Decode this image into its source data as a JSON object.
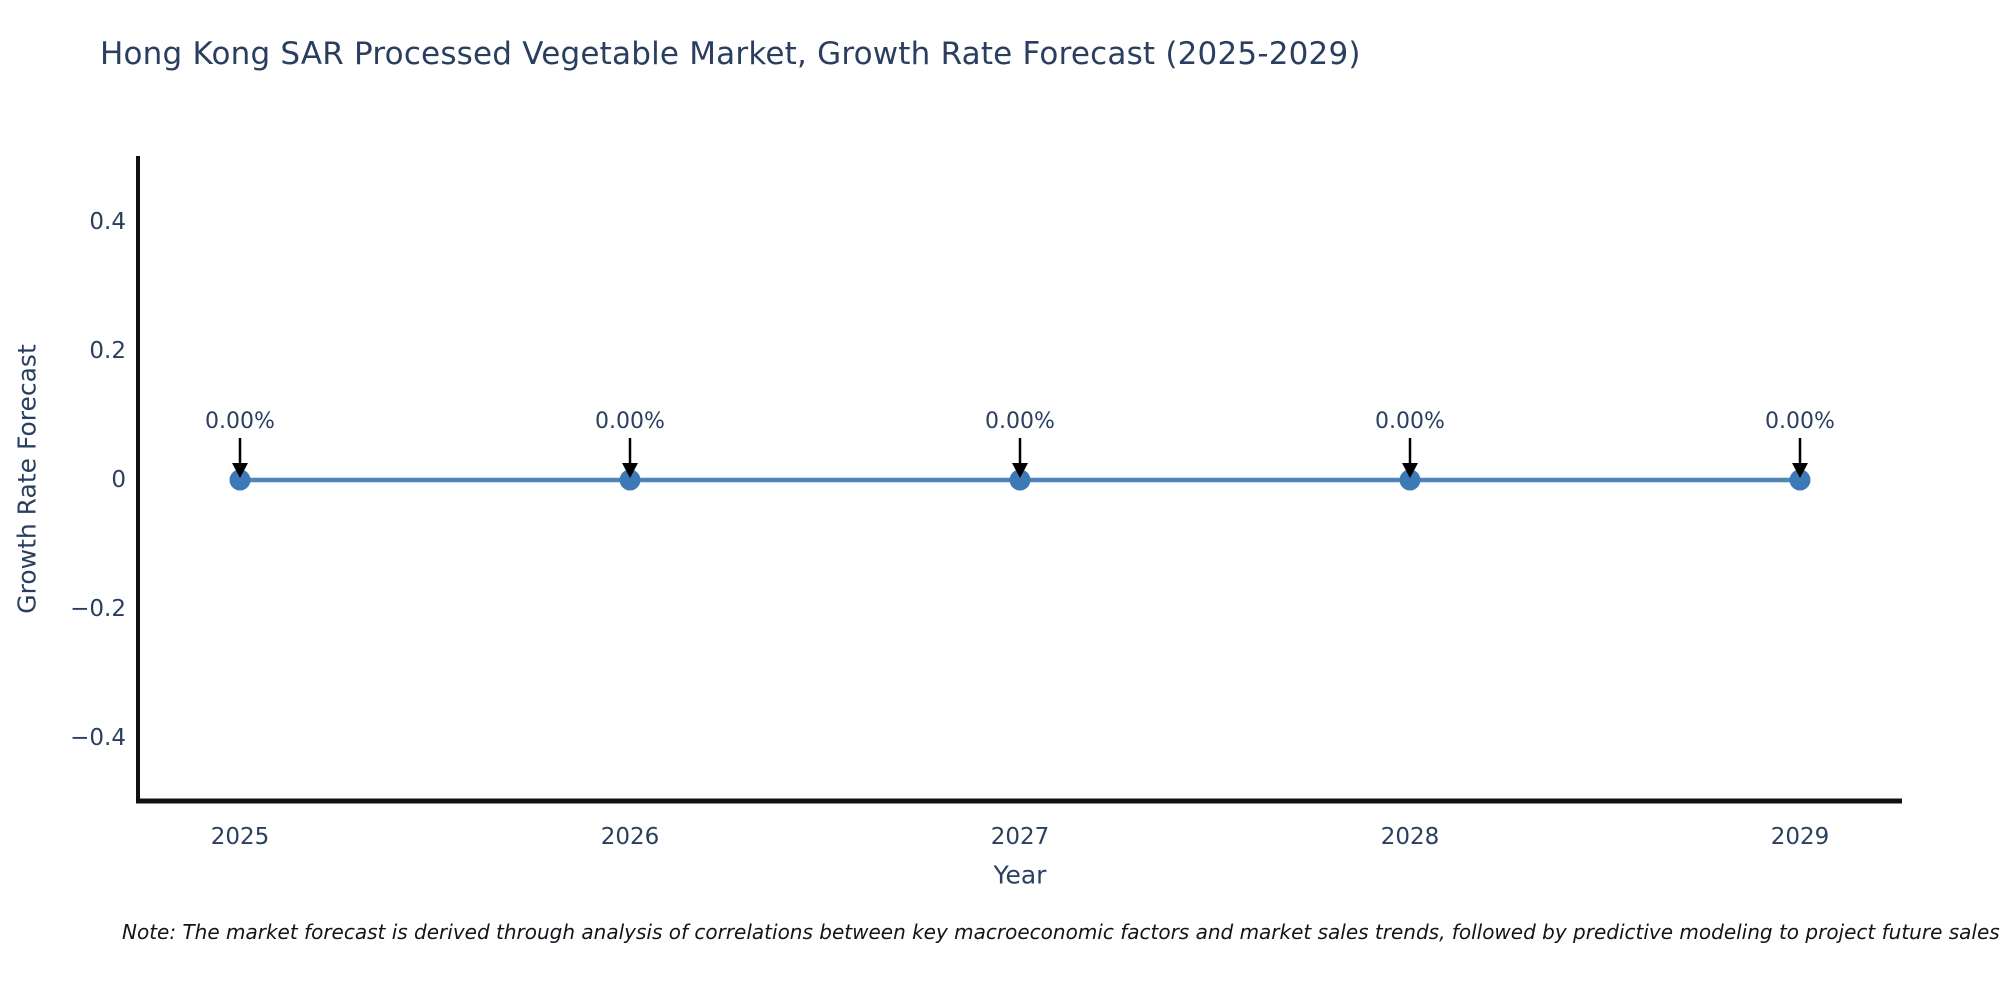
{
  "chart": {
    "note": "Note: The market forecast is derived through analysis of correlations between key macroeconomic factors and market sales trends, followed by predictive modeling to project future sales."
  },
  "chart_data": {
    "type": "line",
    "title": "Hong Kong SAR Processed Vegetable Market, Growth Rate Forecast (2025-2029)",
    "xlabel": "Year",
    "ylabel": "Growth Rate Forecast",
    "x": [
      "2025",
      "2026",
      "2027",
      "2028",
      "2029"
    ],
    "series": [
      {
        "name": "Growth Rate Forecast",
        "values": [
          0,
          0,
          0,
          0,
          0
        ]
      }
    ],
    "point_labels": [
      "0.00%",
      "0.00%",
      "0.00%",
      "0.00%",
      "0.00%"
    ],
    "ylim": [
      -0.5,
      0.5
    ],
    "yticks": [
      {
        "value": 0.4,
        "label": "0.4"
      },
      {
        "value": 0.2,
        "label": "0.2"
      },
      {
        "value": 0,
        "label": "0"
      },
      {
        "value": -0.2,
        "label": "−0.2"
      },
      {
        "value": -0.4,
        "label": "−0.4"
      }
    ],
    "grid": false,
    "legend_position": "none",
    "colors": {
      "line": "#4f86ba",
      "marker": "#3c79b6",
      "axis": "#111111",
      "text": "#2a3f5f",
      "annotation_arrow": "#000000",
      "title": "#2a3f5f",
      "note_text": "#111418",
      "background": "#ffffff"
    }
  }
}
